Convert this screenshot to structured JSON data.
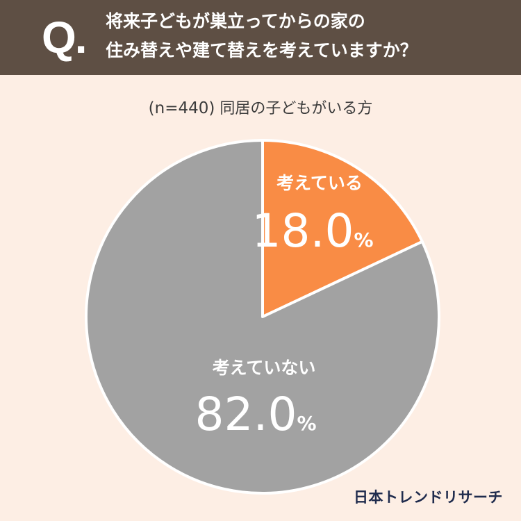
{
  "header": {
    "q_mark": "Q.",
    "question_line1": "将来子どもが巣立ってからの家の",
    "question_line2": "住み替えや建て替えを考えていますか？"
  },
  "subtitle": {
    "sample": "(n=440)",
    "group": "同居の子どもがいる方"
  },
  "colors": {
    "header_bg": "#5e4f44",
    "page_bg": "#fdeee4",
    "slice_yes": "#f98c45",
    "slice_no": "#a2a2a2"
  },
  "chart_data": {
    "type": "pie",
    "title": "将来子どもが巣立ってからの家の住み替えや建て替えを考えていますか？",
    "subtitle": "(n=440) 同居の子どもがいる方",
    "slices": [
      {
        "label": "考えている",
        "value": 18.0,
        "display": "18.0",
        "unit": "%",
        "color": "#f98c45"
      },
      {
        "label": "考えていない",
        "value": 82.0,
        "display": "82.0",
        "unit": "%",
        "color": "#a2a2a2"
      }
    ]
  },
  "brand": "日本トレンドリサーチ"
}
